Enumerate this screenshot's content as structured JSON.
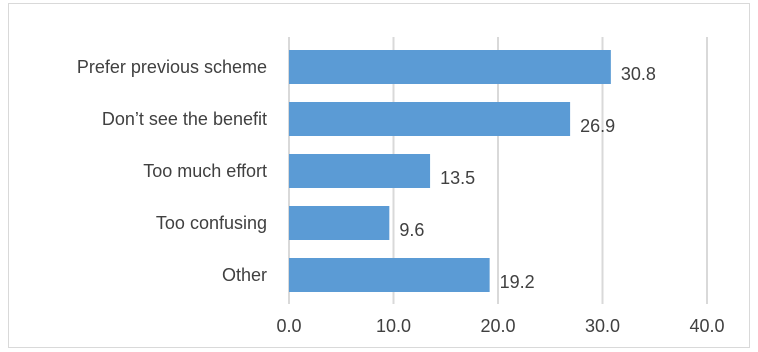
{
  "chart_data": {
    "type": "bar",
    "orientation": "horizontal",
    "categories": [
      "Prefer previous scheme",
      "Don’t see the benefit",
      "Too much effort",
      "Too confusing",
      "Other"
    ],
    "values": [
      30.8,
      26.9,
      13.5,
      9.6,
      19.2
    ],
    "value_labels": [
      "30.8",
      "26.9",
      "13.5",
      "9.6",
      "19.2"
    ],
    "x_ticks": [
      "0.0",
      "10.0",
      "20.0",
      "30.0",
      "40.0"
    ],
    "xlim": [
      0,
      40
    ],
    "grid": "vertical",
    "legend": "none",
    "colors": {
      "bar": "#5b9bd5",
      "gridline": "#d9d9d9",
      "text": "#404040",
      "border": "#d9d9d9"
    }
  }
}
